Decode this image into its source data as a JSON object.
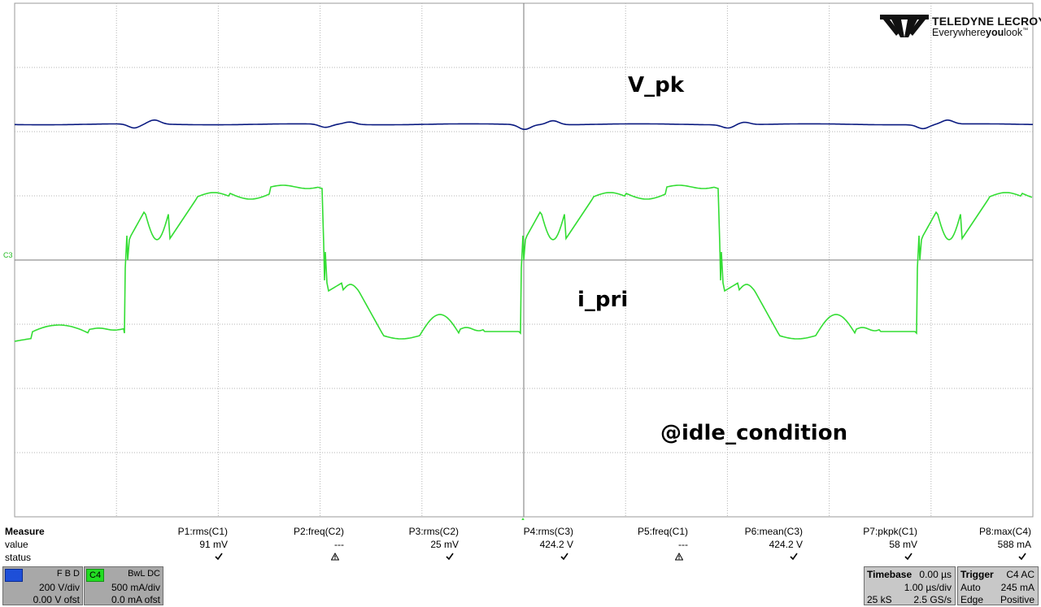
{
  "brand": {
    "name": "TELEDYNE LECROY",
    "tagline_pre": "Everywhere",
    "tagline_bold": "you",
    "tagline_post": "look",
    "tm": "™"
  },
  "annotations": {
    "vpk": "V_pk",
    "ipri": "i_pri",
    "idle": "@idle_condition"
  },
  "trace_label": "C3",
  "colors": {
    "trace_c1": "#0a1a80",
    "trace_c3": "#33dd33",
    "grid": "#9a9a9a",
    "c1_tag": "#1e4fd8",
    "c4_tag": "#22dd22"
  },
  "measure": {
    "labels": {
      "measure": "Measure",
      "value": "value",
      "status": "status"
    },
    "params": [
      {
        "name": "P1:rms(C1)",
        "value": "91 mV",
        "status": "ok"
      },
      {
        "name": "P2:freq(C2)",
        "value": "---",
        "status": "warn"
      },
      {
        "name": "P3:rms(C2)",
        "value": "25 mV",
        "status": "ok"
      },
      {
        "name": "P4:rms(C3)",
        "value": "424.2 V",
        "status": "ok"
      },
      {
        "name": "P5:freq(C1)",
        "value": "---",
        "status": "warn"
      },
      {
        "name": "P6:mean(C3)",
        "value": "424.2 V",
        "status": "ok"
      },
      {
        "name": "P7:pkpk(C1)",
        "value": "58 mV",
        "status": "ok"
      },
      {
        "name": "P8:max(C4)",
        "value": "588 mA",
        "status": "ok"
      }
    ]
  },
  "channels": [
    {
      "tag": "C3",
      "flags": "F B D",
      "scale": "200 V/div",
      "offset": "0.00 V ofst"
    },
    {
      "tag": "C4",
      "flags": "BwL DC",
      "scale": "500 mA/div",
      "offset": "0.0 mA ofst"
    }
  ],
  "timebase": {
    "title": "Timebase",
    "delay": "0.00 µs",
    "div": "1.00 µs/div",
    "samples": "25 kS",
    "rate": "2.5 GS/s"
  },
  "trigger": {
    "title": "Trigger",
    "source": "C4 AC",
    "mode": "Auto",
    "level": "245 mA",
    "type": "Edge",
    "slope": "Positive"
  }
}
